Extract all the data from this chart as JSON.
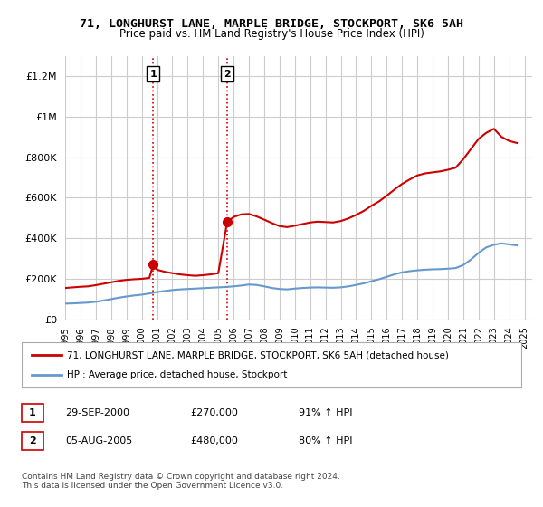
{
  "title": "71, LONGHURST LANE, MARPLE BRIDGE, STOCKPORT, SK6 5AH",
  "subtitle": "Price paid vs. HM Land Registry's House Price Index (HPI)",
  "legend_line1": "71, LONGHURST LANE, MARPLE BRIDGE, STOCKPORT, SK6 5AH (detached house)",
  "legend_line2": "HPI: Average price, detached house, Stockport",
  "transaction1_label": "1",
  "transaction1_date": "29-SEP-2000",
  "transaction1_price": "£270,000",
  "transaction1_hpi": "91% ↑ HPI",
  "transaction2_label": "2",
  "transaction2_date": "05-AUG-2005",
  "transaction2_price": "£480,000",
  "transaction2_hpi": "80% ↑ HPI",
  "footer": "Contains HM Land Registry data © Crown copyright and database right 2024.\nThis data is licensed under the Open Government Licence v3.0.",
  "red_color": "#cc0000",
  "blue_color": "#6699cc",
  "marker_color": "#cc0000",
  "vline_color": "#cc0000",
  "background_color": "#ffffff",
  "grid_color": "#cccccc",
  "ylim": [
    0,
    1300000
  ],
  "xlim_start": 1995.0,
  "xlim_end": 2025.5,
  "marker1_x": 2000.75,
  "marker2_x": 2005.58,
  "marker1_y": 270000,
  "marker2_y": 480000,
  "red_x": [
    1995.0,
    1995.5,
    1996.0,
    1996.5,
    1997.0,
    1997.5,
    1998.0,
    1998.5,
    1999.0,
    1999.5,
    2000.0,
    2000.5,
    2000.75,
    2001.0,
    2001.5,
    2002.0,
    2002.5,
    2003.0,
    2003.5,
    2004.0,
    2004.5,
    2005.0,
    2005.58,
    2006.0,
    2006.5,
    2007.0,
    2007.5,
    2008.0,
    2008.5,
    2009.0,
    2009.5,
    2010.0,
    2010.5,
    2011.0,
    2011.5,
    2012.0,
    2012.5,
    2013.0,
    2013.5,
    2014.0,
    2014.5,
    2015.0,
    2015.5,
    2016.0,
    2016.5,
    2017.0,
    2017.5,
    2018.0,
    2018.5,
    2019.0,
    2019.5,
    2020.0,
    2020.5,
    2021.0,
    2021.5,
    2022.0,
    2022.5,
    2023.0,
    2023.5,
    2024.0,
    2024.5
  ],
  "red_y": [
    155000,
    158000,
    161000,
    163000,
    169000,
    176000,
    183000,
    190000,
    195000,
    198000,
    200000,
    205000,
    270000,
    245000,
    235000,
    228000,
    222000,
    218000,
    215000,
    218000,
    222000,
    228000,
    480000,
    505000,
    518000,
    520000,
    508000,
    492000,
    475000,
    460000,
    455000,
    462000,
    470000,
    478000,
    482000,
    480000,
    478000,
    485000,
    498000,
    515000,
    535000,
    560000,
    582000,
    610000,
    640000,
    668000,
    690000,
    710000,
    720000,
    725000,
    730000,
    738000,
    748000,
    790000,
    840000,
    890000,
    920000,
    940000,
    900000,
    880000,
    870000
  ],
  "blue_x": [
    1995.0,
    1995.5,
    1996.0,
    1996.5,
    1997.0,
    1997.5,
    1998.0,
    1998.5,
    1999.0,
    1999.5,
    2000.0,
    2000.5,
    2001.0,
    2001.5,
    2002.0,
    2002.5,
    2003.0,
    2003.5,
    2004.0,
    2004.5,
    2005.0,
    2005.5,
    2006.0,
    2006.5,
    2007.0,
    2007.5,
    2008.0,
    2008.5,
    2009.0,
    2009.5,
    2010.0,
    2010.5,
    2011.0,
    2011.5,
    2012.0,
    2012.5,
    2013.0,
    2013.5,
    2014.0,
    2014.5,
    2015.0,
    2015.5,
    2016.0,
    2016.5,
    2017.0,
    2017.5,
    2018.0,
    2018.5,
    2019.0,
    2019.5,
    2020.0,
    2020.5,
    2021.0,
    2021.5,
    2022.0,
    2022.5,
    2023.0,
    2023.5,
    2024.0,
    2024.5
  ],
  "blue_y": [
    78000,
    79000,
    81000,
    83000,
    87000,
    93000,
    100000,
    107000,
    113000,
    118000,
    122000,
    128000,
    135000,
    140000,
    145000,
    148000,
    150000,
    152000,
    154000,
    156000,
    158000,
    160000,
    163000,
    167000,
    172000,
    170000,
    163000,
    155000,
    150000,
    148000,
    152000,
    155000,
    157000,
    158000,
    157000,
    156000,
    158000,
    163000,
    170000,
    178000,
    188000,
    198000,
    210000,
    222000,
    232000,
    238000,
    242000,
    245000,
    247000,
    248000,
    250000,
    253000,
    268000,
    295000,
    328000,
    355000,
    368000,
    375000,
    370000,
    365000
  ]
}
